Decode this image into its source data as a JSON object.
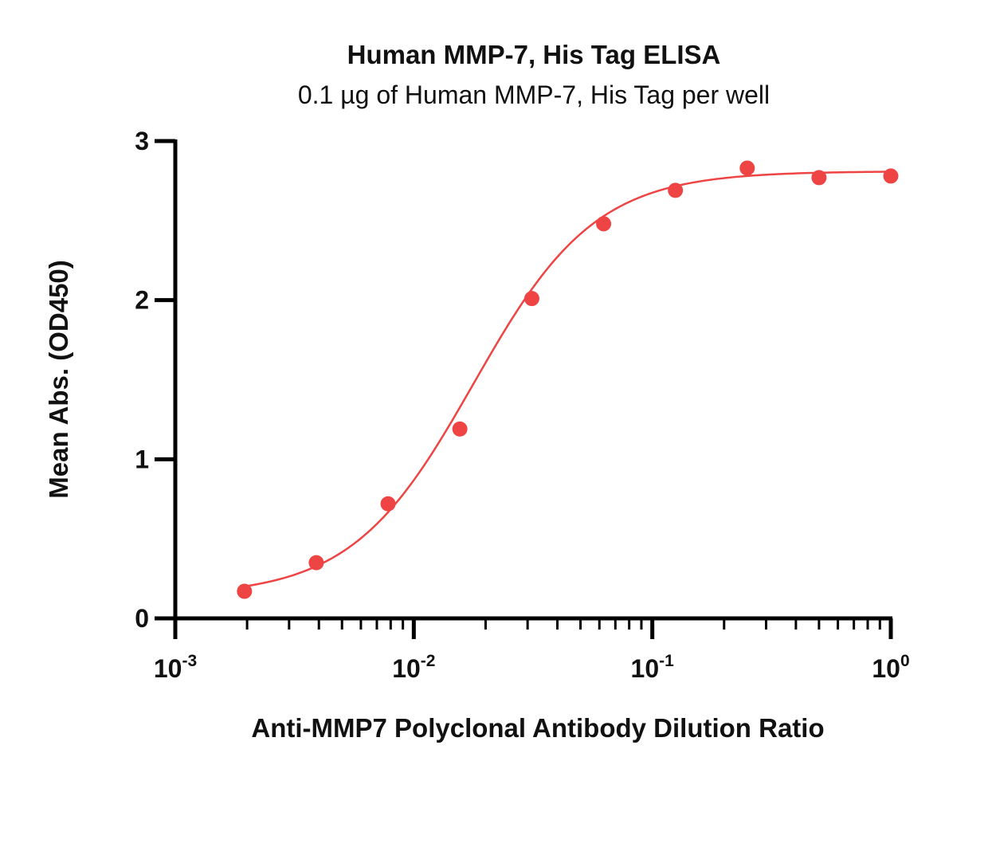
{
  "chart_data": {
    "type": "scatter",
    "title": "Human MMP-7, His Tag ELISA",
    "subtitle": "0.1 µg of Human MMP-7, His Tag per well",
    "xlabel": "Anti-MMP7 Polyclonal Antibody  Dilution Ratio",
    "ylabel": "Mean Abs. (OD450)",
    "x_scale": "log",
    "xlim": [
      0.001,
      1
    ],
    "ylim": [
      0,
      3
    ],
    "x_ticks": [
      {
        "value": 0.001,
        "base": "10",
        "exp": "-3"
      },
      {
        "value": 0.01,
        "base": "10",
        "exp": "-2"
      },
      {
        "value": 0.1,
        "base": "10",
        "exp": "-1"
      },
      {
        "value": 1,
        "base": "10",
        "exp": "0"
      }
    ],
    "y_ticks": [
      {
        "value": 0,
        "label": "0"
      },
      {
        "value": 1,
        "label": "1"
      },
      {
        "value": 2,
        "label": "2"
      },
      {
        "value": 3,
        "label": "3"
      }
    ],
    "grid": false,
    "legend": "none",
    "series": [
      {
        "x": [
          0.00195,
          0.0039,
          0.0078,
          0.0156,
          0.03125,
          0.0625,
          0.125,
          0.25,
          0.5,
          1
        ],
        "y": [
          0.17,
          0.35,
          0.72,
          1.19,
          2.01,
          2.48,
          2.69,
          2.83,
          2.77,
          2.78
        ],
        "color": "#ef4444",
        "fit": {
          "model": "4PL",
          "bottom": 0.14,
          "top": 2.81,
          "ec50": 0.0178,
          "hill": 1.7
        }
      }
    ]
  }
}
